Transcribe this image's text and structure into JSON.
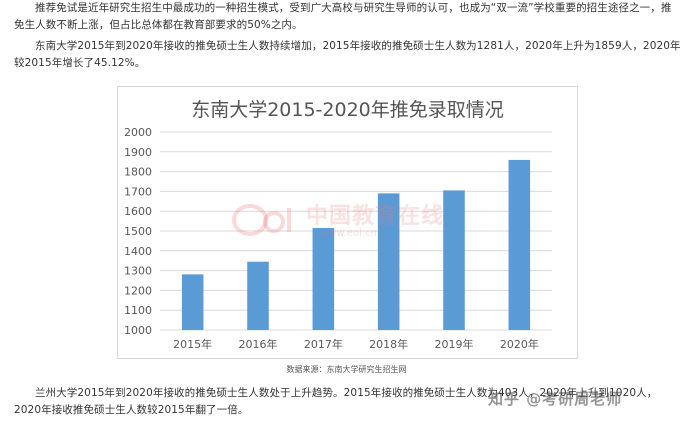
{
  "paragraphs": {
    "p1": "推荐免试是近年研究生招生中最成功的一种招生模式，受到广大高校与研究生导师的认可，也成为“双一流”学校重要的招生途径之一，推免生人数不断上涨，但占比总体都在教育部要求的50%之内。",
    "p2": "东南大学2015年到2020年接收的推免硕士生人数持续增加，2015年接收的推免硕士生人数为1281人，2020年上升为1859人，2020年较2015年增长了45.12%。",
    "p3": "兰州大学2015年到2020年接收的推免硕士生人数处于上升趋势。2015年接收的推免硕士生人数为403人，2020年上升到1020人，2020年接收推免硕士生人数较2015年翻了一倍。"
  },
  "source_note": "数据来源：东南大学研究生招生网",
  "watermark": {
    "text": "中国教育在线",
    "url": "www.eol.cn"
  },
  "zhihu_watermark": "知乎 @考研周老师",
  "colors": {
    "bar": "#5b9bd5",
    "grid": "#d9d9d9",
    "axis_text": "#595959",
    "title": "#595959"
  },
  "chart_data": {
    "type": "bar",
    "title": "东南大学2015-2020年推免录取情况",
    "categories": [
      "2015年",
      "2016年",
      "2017年",
      "2018年",
      "2019年",
      "2020年"
    ],
    "values": [
      1281,
      1345,
      1515,
      1690,
      1705,
      1859
    ],
    "ylim": [
      1000,
      2000
    ],
    "yticks": [
      1000,
      1100,
      1200,
      1300,
      1400,
      1500,
      1600,
      1700,
      1800,
      1900,
      2000
    ],
    "grid": true,
    "legend": "none",
    "xlabel": "",
    "ylabel": ""
  }
}
